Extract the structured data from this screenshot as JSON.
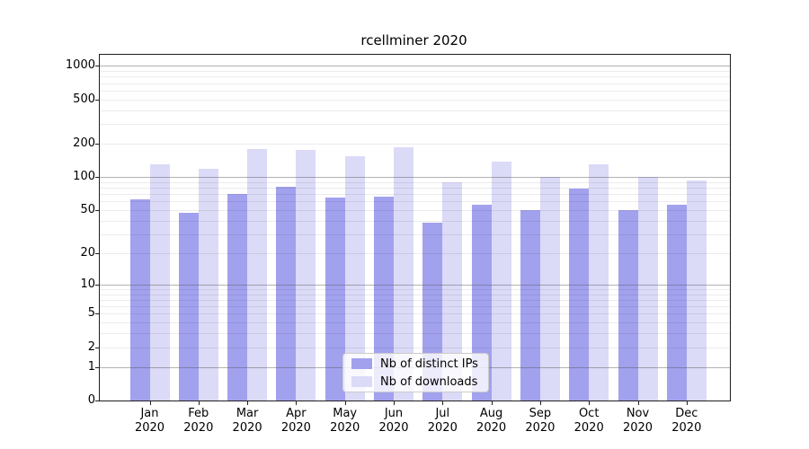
{
  "title": "rcellminer 2020",
  "colors": {
    "distinct_ips": "#a2a1ee",
    "downloads": "#dbdaf7",
    "grid_major": "#b5b5b5",
    "grid_minor": "#ededed",
    "spine": "#1f1f1f"
  },
  "legend": {
    "items": [
      {
        "label": "Nb of distinct IPs",
        "color_key": "distinct_ips"
      },
      {
        "label": "Nb of downloads",
        "color_key": "downloads"
      }
    ]
  },
  "x_axis": {
    "months": [
      "Jan",
      "Feb",
      "Mar",
      "Apr",
      "May",
      "Jun",
      "Jul",
      "Aug",
      "Sep",
      "Oct",
      "Nov",
      "Dec"
    ],
    "year_line": "2020"
  },
  "y_axis": {
    "tick_labels": [
      "0",
      "1",
      "2",
      "5",
      "10",
      "20",
      "50",
      "100",
      "200",
      "500",
      "1000"
    ]
  },
  "chart_data": {
    "type": "bar",
    "title": "rcellminer 2020",
    "categories": [
      "Jan 2020",
      "Feb 2020",
      "Mar 2020",
      "Apr 2020",
      "May 2020",
      "Jun 2020",
      "Jul 2020",
      "Aug 2020",
      "Sep 2020",
      "Oct 2020",
      "Nov 2020",
      "Dec 2020"
    ],
    "series": [
      {
        "name": "Nb of distinct IPs",
        "color_key": "distinct_ips",
        "values": [
          63,
          47,
          70,
          82,
          65,
          66,
          38,
          56,
          50,
          79,
          50,
          56
        ]
      },
      {
        "name": "Nb of downloads",
        "color_key": "downloads",
        "values": [
          130,
          119,
          180,
          177,
          155,
          185,
          90,
          138,
          100,
          130,
          100,
          93
        ]
      }
    ],
    "xlabel": "",
    "ylabel": "",
    "y_ticks": [
      0,
      1,
      2,
      5,
      10,
      20,
      50,
      100,
      200,
      500,
      1000
    ],
    "y_scale": "log10(value+1)",
    "ylim": [
      0,
      1256
    ],
    "grid": "on",
    "major_grid_at": [
      1,
      10,
      100,
      1000
    ],
    "legend_position": "lower center"
  }
}
